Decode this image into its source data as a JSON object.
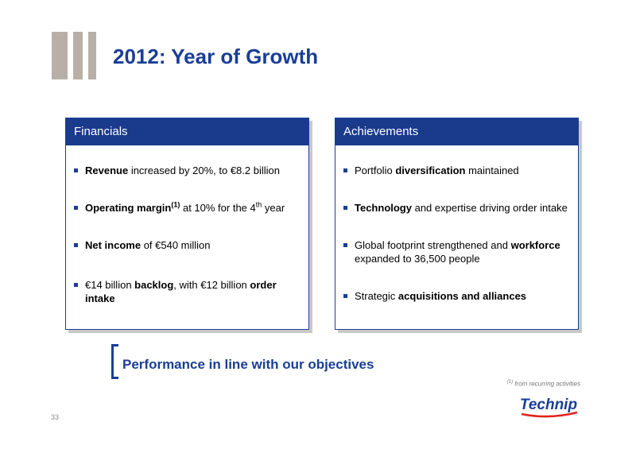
{
  "title": "2012: Year of Growth",
  "financials": {
    "heading": "Financials",
    "items": [
      {
        "bold": "Revenue",
        "rest": " increased by 20%, to €8.2 billion"
      },
      {
        "bold": "Operating margin",
        "sup": "(1)",
        "rest": " at 10% for the 4",
        "sup2": "th",
        "rest2": " year"
      },
      {
        "bold": "Net income",
        "rest": " of €540 million"
      },
      {
        "pre": "€14 billion ",
        "bold": "backlog",
        "rest": ", with €12 billion ",
        "bold2": "order intake"
      }
    ]
  },
  "achievements": {
    "heading": "Achievements",
    "items": [
      {
        "pre": "Portfolio ",
        "bold": "diversification",
        "rest": " maintained"
      },
      {
        "bold": "Technology",
        "rest": " and expertise driving order intake"
      },
      {
        "pre": "Global footprint strengthened and ",
        "bold": "workforce",
        "rest": " expanded to 36,500 people"
      },
      {
        "pre": "Strategic ",
        "bold": "acquisitions and alliances"
      }
    ]
  },
  "tagline": "Performance in line with our objectives",
  "footnote": {
    "marker": "(1)",
    "text": " from recurring activities"
  },
  "page_number": "33",
  "logo": {
    "text": "Technip",
    "color": "#1a3e95",
    "accent": "#e2231a"
  }
}
